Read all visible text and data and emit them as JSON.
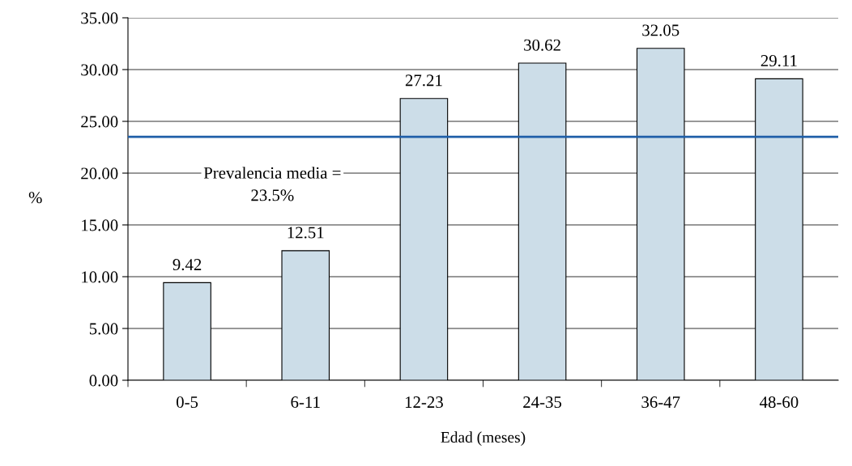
{
  "chart_data": {
    "type": "bar",
    "categories": [
      "0-5",
      "6-11",
      "12-23",
      "24-35",
      "36-47",
      "48-60"
    ],
    "values": [
      9.42,
      12.51,
      27.21,
      30.62,
      32.05,
      29.11
    ],
    "color": "#ccdde8",
    "data_labels": true,
    "xlabel": "Edad (meses)",
    "ylabel": "%",
    "ylim": [
      0,
      35
    ],
    "yticks": [
      {
        "value": 0,
        "label": "0.00"
      },
      {
        "value": 5,
        "label": "5.00"
      },
      {
        "value": 10,
        "label": "10.00"
      },
      {
        "value": 15,
        "label": "15.00"
      },
      {
        "value": 20,
        "label": "20.00"
      },
      {
        "value": 25,
        "label": "25.00"
      },
      {
        "value": 30,
        "label": "30.00"
      },
      {
        "value": 35,
        "label": "35.00"
      }
    ],
    "grid": "y",
    "ref_lines": [
      {
        "axis": "y",
        "value": 23.5,
        "label": "Prevalencia media =\n23.5%",
        "color": "#1f5fa8"
      }
    ]
  }
}
